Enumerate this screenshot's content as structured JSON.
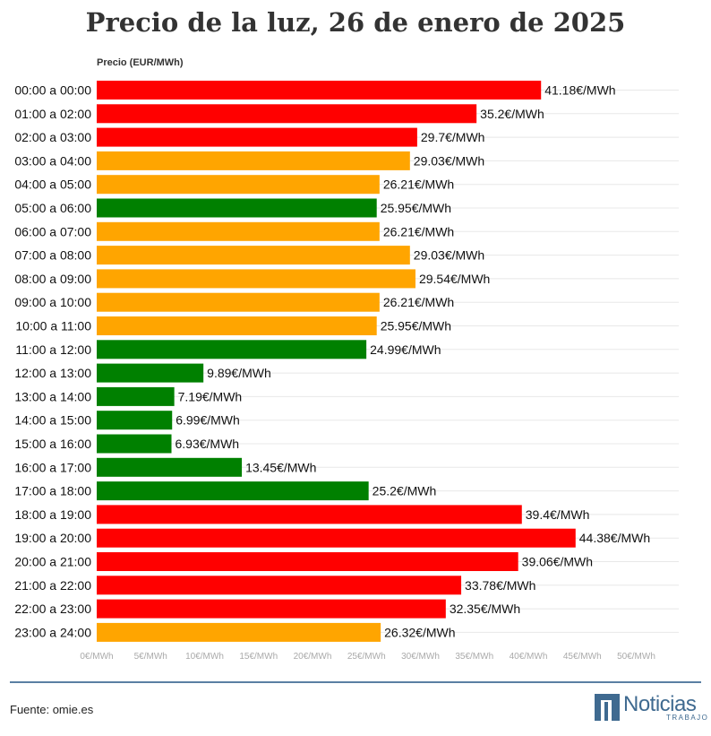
{
  "chart_data": {
    "type": "bar",
    "orientation": "horizontal",
    "title": "Precio de la luz, 26 de enero de 2025",
    "ylabel": "Precio (EUR/MWh)",
    "xlim": [
      0,
      52
    ],
    "xticks": [
      0,
      5,
      10,
      15,
      20,
      25,
      30,
      35,
      40,
      45,
      50
    ],
    "xtick_suffix": "€/MWh",
    "value_suffix": "€/MWh",
    "categories": [
      "00:00 a 00:00",
      "01:00 a 02:00",
      "02:00 a 03:00",
      "03:00 a 04:00",
      "04:00 a 05:00",
      "05:00 a 06:00",
      "06:00 a 07:00",
      "07:00 a 08:00",
      "08:00 a 09:00",
      "09:00 a 10:00",
      "10:00 a 11:00",
      "11:00 a 12:00",
      "12:00 a 13:00",
      "13:00 a 14:00",
      "14:00 a 15:00",
      "15:00 a 16:00",
      "16:00 a 17:00",
      "17:00 a 18:00",
      "18:00 a 19:00",
      "19:00 a 20:00",
      "20:00 a 21:00",
      "21:00 a 22:00",
      "22:00 a 23:00",
      "23:00 a 24:00"
    ],
    "values": [
      41.18,
      35.2,
      29.7,
      29.03,
      26.21,
      25.95,
      26.21,
      29.03,
      29.54,
      26.21,
      25.95,
      24.99,
      9.89,
      7.19,
      6.99,
      6.93,
      13.45,
      25.2,
      39.4,
      44.38,
      39.06,
      33.78,
      32.35,
      26.32
    ],
    "levels": [
      "high",
      "high",
      "high",
      "mid",
      "mid",
      "low",
      "mid",
      "mid",
      "mid",
      "mid",
      "mid",
      "low",
      "low",
      "low",
      "low",
      "low",
      "low",
      "low",
      "high",
      "high",
      "high",
      "high",
      "high",
      "mid"
    ],
    "level_colors": {
      "high": "#ff0000",
      "mid": "#ffa500",
      "low": "#008000"
    },
    "grid": true
  },
  "footer": {
    "source": "Fuente: omie.es",
    "logo_word": "Noticias",
    "logo_sub": "TRABAJO"
  }
}
